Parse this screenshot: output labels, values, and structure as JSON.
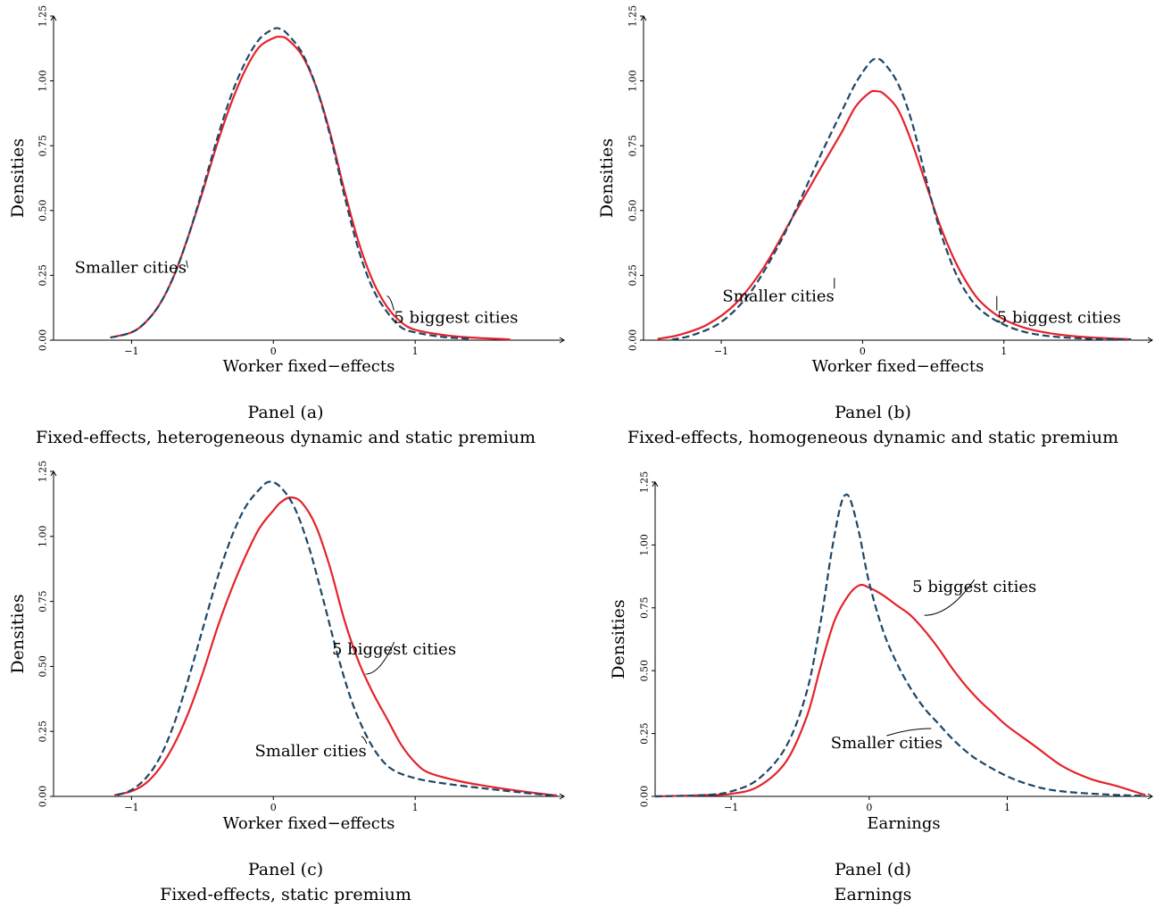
{
  "colors": {
    "red": "#e4232b",
    "blue": "#1c4768",
    "axis": "#000000"
  },
  "chart_data": [
    {
      "type": "line",
      "panel_label": "Panel (a)",
      "caption": "Fixed-effects, heterogeneous dynamic and static premium",
      "xlabel": "Worker fixed−effects",
      "ylabel": "Densities",
      "xlim": [
        -1.55,
        2.05
      ],
      "ylim": [
        0,
        1.25
      ],
      "xticks": [
        -1,
        0,
        1
      ],
      "xtick_labels": [
        "−1",
        "0",
        "1"
      ],
      "yticks": [
        0,
        0.25,
        0.5,
        0.75,
        1.0,
        1.25
      ],
      "ytick_labels": [
        "0.00",
        "0.25",
        "0.50",
        "0.75",
        "1.00",
        "1.25"
      ],
      "series": [
        {
          "name": "5 biggest cities",
          "color": "#e4232b",
          "style": "solid",
          "points": [
            [
              -1.15,
              0.01
            ],
            [
              -1.0,
              0.03
            ],
            [
              -0.9,
              0.07
            ],
            [
              -0.8,
              0.14
            ],
            [
              -0.7,
              0.25
            ],
            [
              -0.6,
              0.4
            ],
            [
              -0.5,
              0.57
            ],
            [
              -0.4,
              0.75
            ],
            [
              -0.3,
              0.91
            ],
            [
              -0.2,
              1.04
            ],
            [
              -0.1,
              1.13
            ],
            [
              0.0,
              1.165
            ],
            [
              0.05,
              1.17
            ],
            [
              0.1,
              1.16
            ],
            [
              0.2,
              1.1
            ],
            [
              0.3,
              0.98
            ],
            [
              0.4,
              0.8
            ],
            [
              0.5,
              0.58
            ],
            [
              0.6,
              0.38
            ],
            [
              0.7,
              0.23
            ],
            [
              0.8,
              0.13
            ],
            [
              0.9,
              0.07
            ],
            [
              1.0,
              0.04
            ],
            [
              1.2,
              0.02
            ],
            [
              1.4,
              0.01
            ],
            [
              1.67,
              0.003
            ]
          ]
        },
        {
          "name": "Smaller cities",
          "color": "#1c4768",
          "style": "dashed",
          "points": [
            [
              -1.15,
              0.01
            ],
            [
              -1.0,
              0.03
            ],
            [
              -0.9,
              0.07
            ],
            [
              -0.8,
              0.14
            ],
            [
              -0.7,
              0.25
            ],
            [
              -0.6,
              0.4
            ],
            [
              -0.5,
              0.58
            ],
            [
              -0.4,
              0.77
            ],
            [
              -0.3,
              0.94
            ],
            [
              -0.2,
              1.07
            ],
            [
              -0.1,
              1.16
            ],
            [
              0.0,
              1.2
            ],
            [
              0.05,
              1.2
            ],
            [
              0.1,
              1.18
            ],
            [
              0.2,
              1.11
            ],
            [
              0.3,
              0.98
            ],
            [
              0.4,
              0.79
            ],
            [
              0.5,
              0.56
            ],
            [
              0.6,
              0.35
            ],
            [
              0.7,
              0.2
            ],
            [
              0.8,
              0.11
            ],
            [
              0.9,
              0.05
            ],
            [
              1.0,
              0.03
            ],
            [
              1.2,
              0.012
            ],
            [
              1.4,
              0.005
            ]
          ]
        }
      ],
      "annotations": [
        {
          "text": "Smaller cities",
          "x": -0.6,
          "y": 0.28
        },
        {
          "text": "5 biggest cities",
          "x": 0.8,
          "y": 0.17
        }
      ]
    },
    {
      "type": "line",
      "panel_label": "Panel (b)",
      "caption": "Fixed-effects, homogeneous dynamic and static premium",
      "xlabel": "Worker fixed−effects",
      "ylabel": "Densities",
      "xlim": [
        -1.55,
        2.05
      ],
      "ylim": [
        0,
        1.25
      ],
      "xticks": [
        -1,
        0,
        1
      ],
      "xtick_labels": [
        "−1",
        "0",
        "1"
      ],
      "yticks": [
        0,
        0.25,
        0.5,
        0.75,
        1.0,
        1.25
      ],
      "ytick_labels": [
        "0.00",
        "0.25",
        "0.50",
        "0.75",
        "1.00",
        "1.25"
      ],
      "series": [
        {
          "name": "5 biggest cities",
          "color": "#e4232b",
          "style": "solid",
          "points": [
            [
              -1.45,
              0.005
            ],
            [
              -1.3,
              0.02
            ],
            [
              -1.1,
              0.06
            ],
            [
              -0.9,
              0.14
            ],
            [
              -0.7,
              0.28
            ],
            [
              -0.5,
              0.47
            ],
            [
              -0.3,
              0.66
            ],
            [
              -0.15,
              0.8
            ],
            [
              -0.05,
              0.9
            ],
            [
              0.05,
              0.955
            ],
            [
              0.1,
              0.96
            ],
            [
              0.15,
              0.95
            ],
            [
              0.25,
              0.89
            ],
            [
              0.35,
              0.76
            ],
            [
              0.45,
              0.6
            ],
            [
              0.55,
              0.44
            ],
            [
              0.65,
              0.31
            ],
            [
              0.75,
              0.21
            ],
            [
              0.85,
              0.14
            ],
            [
              1.0,
              0.08
            ],
            [
              1.2,
              0.04
            ],
            [
              1.5,
              0.015
            ],
            [
              1.9,
              0.003
            ]
          ]
        },
        {
          "name": "Smaller cities",
          "color": "#1c4768",
          "style": "dashed",
          "points": [
            [
              -1.35,
              0.002
            ],
            [
              -1.2,
              0.02
            ],
            [
              -1.0,
              0.07
            ],
            [
              -0.8,
              0.18
            ],
            [
              -0.6,
              0.36
            ],
            [
              -0.45,
              0.53
            ],
            [
              -0.3,
              0.71
            ],
            [
              -0.15,
              0.88
            ],
            [
              -0.05,
              0.99
            ],
            [
              0.05,
              1.07
            ],
            [
              0.1,
              1.085
            ],
            [
              0.15,
              1.07
            ],
            [
              0.25,
              0.99
            ],
            [
              0.35,
              0.84
            ],
            [
              0.45,
              0.62
            ],
            [
              0.55,
              0.42
            ],
            [
              0.65,
              0.27
            ],
            [
              0.75,
              0.17
            ],
            [
              0.85,
              0.11
            ],
            [
              1.0,
              0.06
            ],
            [
              1.2,
              0.025
            ],
            [
              1.5,
              0.008
            ],
            [
              1.9,
              0.002
            ]
          ]
        }
      ],
      "annotations": [
        {
          "text": "Smaller cities",
          "x": -0.2,
          "y": 0.24
        },
        {
          "text": "5 biggest cities",
          "x": 0.95,
          "y": 0.17
        }
      ]
    },
    {
      "type": "line",
      "panel_label": "Panel (c)",
      "caption": "Fixed-effects, static premium",
      "xlabel": "Worker fixed−effects",
      "ylabel": "Densities",
      "xlim": [
        -1.55,
        2.05
      ],
      "ylim": [
        0,
        1.25
      ],
      "xticks": [
        -1,
        0,
        1
      ],
      "xtick_labels": [
        "−1",
        "0",
        "1"
      ],
      "yticks": [
        0,
        0.25,
        0.5,
        0.75,
        1.0,
        1.25
      ],
      "ytick_labels": [
        "0.00",
        "0.25",
        "0.50",
        "0.75",
        "1.00",
        "1.25"
      ],
      "series": [
        {
          "name": "5 biggest cities",
          "color": "#e4232b",
          "style": "solid",
          "points": [
            [
              -1.12,
              0.005
            ],
            [
              -1.0,
              0.02
            ],
            [
              -0.9,
              0.05
            ],
            [
              -0.8,
              0.11
            ],
            [
              -0.7,
              0.2
            ],
            [
              -0.6,
              0.32
            ],
            [
              -0.5,
              0.47
            ],
            [
              -0.4,
              0.64
            ],
            [
              -0.3,
              0.79
            ],
            [
              -0.2,
              0.92
            ],
            [
              -0.1,
              1.03
            ],
            [
              0.0,
              1.1
            ],
            [
              0.05,
              1.13
            ],
            [
              0.12,
              1.15
            ],
            [
              0.2,
              1.13
            ],
            [
              0.3,
              1.04
            ],
            [
              0.4,
              0.88
            ],
            [
              0.5,
              0.68
            ],
            [
              0.6,
              0.52
            ],
            [
              0.7,
              0.4
            ],
            [
              0.8,
              0.3
            ],
            [
              0.9,
              0.2
            ],
            [
              1.0,
              0.13
            ],
            [
              1.1,
              0.09
            ],
            [
              1.3,
              0.06
            ],
            [
              1.5,
              0.04
            ],
            [
              1.75,
              0.02
            ],
            [
              2.0,
              0.003
            ]
          ]
        },
        {
          "name": "Smaller cities",
          "color": "#1c4768",
          "style": "dashed",
          "points": [
            [
              -1.1,
              0.005
            ],
            [
              -1.0,
              0.025
            ],
            [
              -0.9,
              0.07
            ],
            [
              -0.8,
              0.15
            ],
            [
              -0.7,
              0.28
            ],
            [
              -0.6,
              0.45
            ],
            [
              -0.5,
              0.64
            ],
            [
              -0.4,
              0.83
            ],
            [
              -0.3,
              0.99
            ],
            [
              -0.2,
              1.11
            ],
            [
              -0.1,
              1.18
            ],
            [
              -0.03,
              1.21
            ],
            [
              0.05,
              1.19
            ],
            [
              0.15,
              1.11
            ],
            [
              0.25,
              0.96
            ],
            [
              0.35,
              0.76
            ],
            [
              0.45,
              0.55
            ],
            [
              0.55,
              0.37
            ],
            [
              0.65,
              0.24
            ],
            [
              0.75,
              0.15
            ],
            [
              0.85,
              0.1
            ],
            [
              1.0,
              0.07
            ],
            [
              1.2,
              0.05
            ],
            [
              1.5,
              0.03
            ],
            [
              1.8,
              0.012
            ],
            [
              2.0,
              0.002
            ]
          ]
        }
      ],
      "annotations": [
        {
          "text": "5 biggest cities",
          "x": 0.65,
          "y": 0.47
        },
        {
          "text": "Smaller cities",
          "x": 0.62,
          "y": 0.23
        }
      ]
    },
    {
      "type": "line",
      "panel_label": "Panel (d)",
      "caption": "Earnings",
      "xlabel": "Earnings",
      "ylabel": "Densities",
      "xlim": [
        -1.55,
        2.05
      ],
      "ylim": [
        0,
        1.25
      ],
      "xticks": [
        -1,
        0,
        1
      ],
      "xtick_labels": [
        "−1",
        "0",
        "1"
      ],
      "yticks": [
        0,
        0.25,
        0.5,
        0.75,
        1.0,
        1.25
      ],
      "ytick_labels": [
        "0.00",
        "0.25",
        "0.50",
        "0.75",
        "1.00",
        "1.25"
      ],
      "series": [
        {
          "name": "5 biggest cities",
          "color": "#e4232b",
          "style": "solid",
          "points": [
            [
              -1.55,
              0.0
            ],
            [
              -1.2,
              0.005
            ],
            [
              -1.0,
              0.01
            ],
            [
              -0.8,
              0.04
            ],
            [
              -0.6,
              0.14
            ],
            [
              -0.45,
              0.32
            ],
            [
              -0.35,
              0.52
            ],
            [
              -0.25,
              0.7
            ],
            [
              -0.15,
              0.8
            ],
            [
              -0.07,
              0.84
            ],
            [
              0.0,
              0.83
            ],
            [
              0.1,
              0.8
            ],
            [
              0.2,
              0.76
            ],
            [
              0.3,
              0.72
            ],
            [
              0.4,
              0.66
            ],
            [
              0.5,
              0.59
            ],
            [
              0.6,
              0.51
            ],
            [
              0.7,
              0.44
            ],
            [
              0.8,
              0.38
            ],
            [
              0.9,
              0.33
            ],
            [
              1.0,
              0.28
            ],
            [
              1.2,
              0.2
            ],
            [
              1.4,
              0.12
            ],
            [
              1.6,
              0.07
            ],
            [
              1.8,
              0.04
            ],
            [
              2.0,
              0.005
            ]
          ]
        },
        {
          "name": "Smaller cities",
          "color": "#1c4768",
          "style": "dashed",
          "points": [
            [
              -1.55,
              0.0
            ],
            [
              -1.2,
              0.005
            ],
            [
              -1.0,
              0.02
            ],
            [
              -0.8,
              0.07
            ],
            [
              -0.6,
              0.2
            ],
            [
              -0.45,
              0.42
            ],
            [
              -0.35,
              0.7
            ],
            [
              -0.27,
              0.98
            ],
            [
              -0.21,
              1.15
            ],
            [
              -0.17,
              1.2
            ],
            [
              -0.13,
              1.17
            ],
            [
              -0.07,
              1.04
            ],
            [
              0.0,
              0.85
            ],
            [
              0.1,
              0.66
            ],
            [
              0.2,
              0.53
            ],
            [
              0.3,
              0.43
            ],
            [
              0.4,
              0.35
            ],
            [
              0.5,
              0.29
            ],
            [
              0.6,
              0.23
            ],
            [
              0.7,
              0.18
            ],
            [
              0.8,
              0.14
            ],
            [
              1.0,
              0.08
            ],
            [
              1.2,
              0.04
            ],
            [
              1.4,
              0.02
            ],
            [
              1.7,
              0.008
            ],
            [
              2.0,
              0.002
            ]
          ]
        }
      ],
      "annotations": [
        {
          "text": "5 biggest cities",
          "x": 0.4,
          "y": 0.72
        },
        {
          "text": "Smaller cities",
          "x": 0.45,
          "y": 0.27
        }
      ]
    }
  ]
}
